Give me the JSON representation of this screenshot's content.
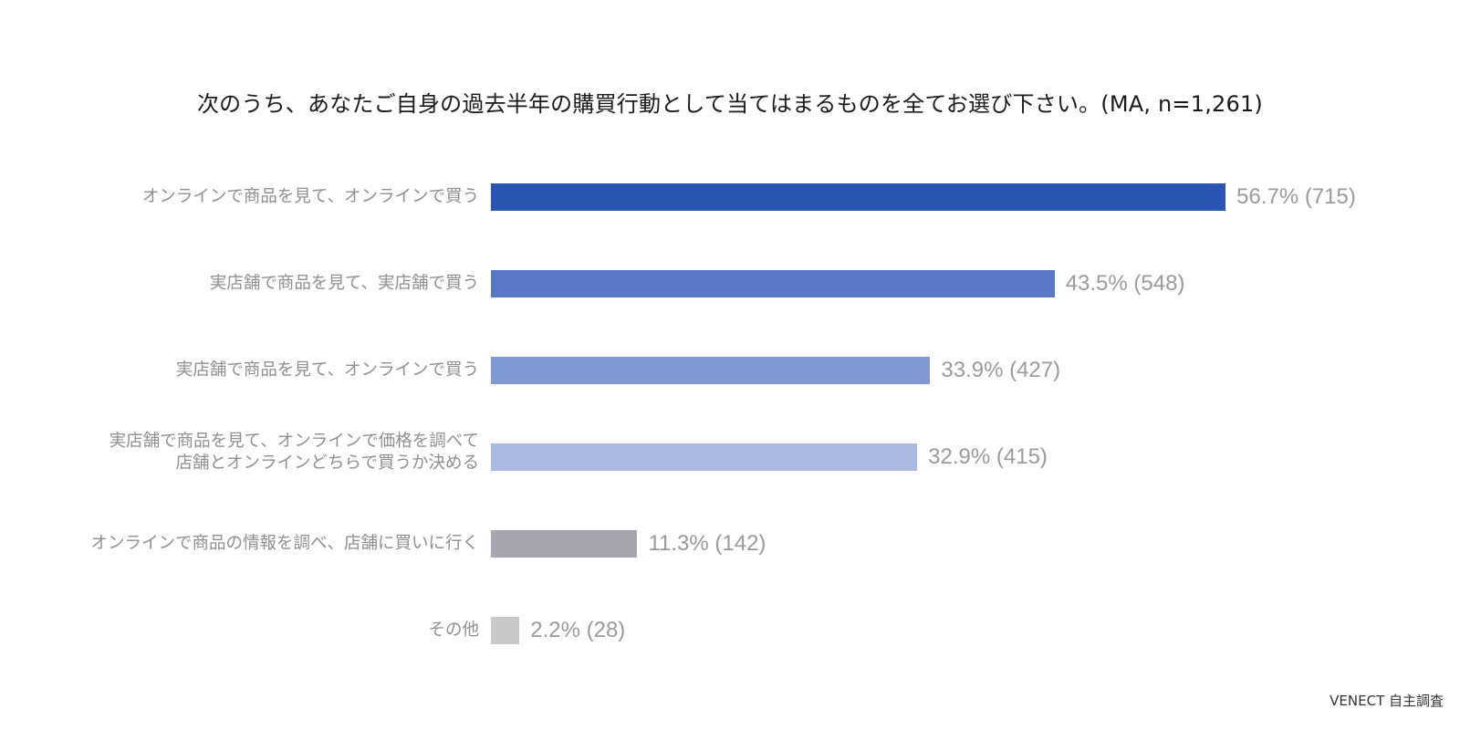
{
  "chart_data": {
    "type": "bar",
    "orientation": "horizontal",
    "title": "次のうち、あなたご自身の過去半年の購買行動として当てはまるものを全てお選び下さい。(MA, n=1,261)",
    "xlabel": "",
    "ylabel": "",
    "grid": false,
    "legend": null,
    "categories": [
      "オンラインで商品を見て、オンラインで買う",
      "実店舗で商品を見て、実店舗で買う",
      "実店舗で商品を見て、オンラインで買う",
      "実店舗で商品を見て、オンラインで価格を調べて店舗とオンラインどちらで買うか決める",
      "オンラインで商品の情報を調べ、店舗に買いに行く",
      "その他"
    ],
    "values": [
      56.7,
      43.5,
      33.9,
      32.9,
      11.3,
      2.2
    ],
    "counts": [
      715,
      548,
      427,
      415,
      142,
      28
    ],
    "unit": "%",
    "n": 1261,
    "source": "VENECT 自主調査"
  },
  "title": "次のうち、あなたご自身の過去半年の購買行動として当てはまるものを全てお選び下さい。(MA, n=1,261)",
  "rows": [
    {
      "label_line1": "オンラインで商品を見て、オンラインで買う",
      "label_line2": "",
      "value_label": "56.7% (715)",
      "value": 56.7,
      "color": "#2b55b4"
    },
    {
      "label_line1": "実店舗で商品を見て、実店舗で買う",
      "label_line2": "",
      "value_label": "43.5% (548)",
      "value": 43.5,
      "color": "#5878c5"
    },
    {
      "label_line1": "実店舗で商品を見て、オンラインで買う",
      "label_line2": "",
      "value_label": "33.9% (427)",
      "value": 33.9,
      "color": "#8099d3"
    },
    {
      "label_line1": "実店舗で商品を見て、オンラインで価格を調べて",
      "label_line2": "店舗とオンラインどちらで買うか決める",
      "value_label": "32.9% (415)",
      "value": 32.9,
      "color": "#a9b9e0"
    },
    {
      "label_line1": "オンラインで商品の情報を調べ、店舗に買いに行く",
      "label_line2": "",
      "value_label": "11.3% (142)",
      "value": 11.3,
      "color": "#a6a6b0"
    },
    {
      "label_line1": "その他",
      "label_line2": "",
      "value_label": "2.2% (28)",
      "value": 2.2,
      "color": "#c9c9c9"
    }
  ],
  "source": "VENECT 自主調査"
}
